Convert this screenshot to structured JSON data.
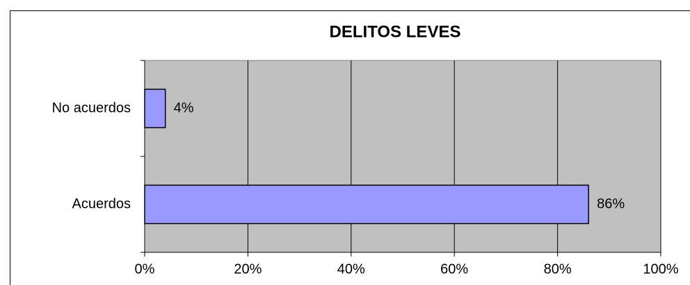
{
  "chart_data": {
    "type": "bar",
    "orientation": "horizontal",
    "title": "DELITOS LEVES",
    "categories": [
      "No acuerdos",
      "Acuerdos"
    ],
    "values": [
      4,
      86
    ],
    "value_labels": [
      "4%",
      "86%"
    ],
    "color": "#9999ff",
    "xlim": [
      0,
      100
    ],
    "xticks": [
      {
        "value": 0,
        "label": "0%"
      },
      {
        "value": 20,
        "label": "20%"
      },
      {
        "value": 40,
        "label": "40%"
      },
      {
        "value": 60,
        "label": "60%"
      },
      {
        "value": 80,
        "label": "80%"
      },
      {
        "value": 100,
        "label": "100%"
      }
    ],
    "grid": true
  }
}
